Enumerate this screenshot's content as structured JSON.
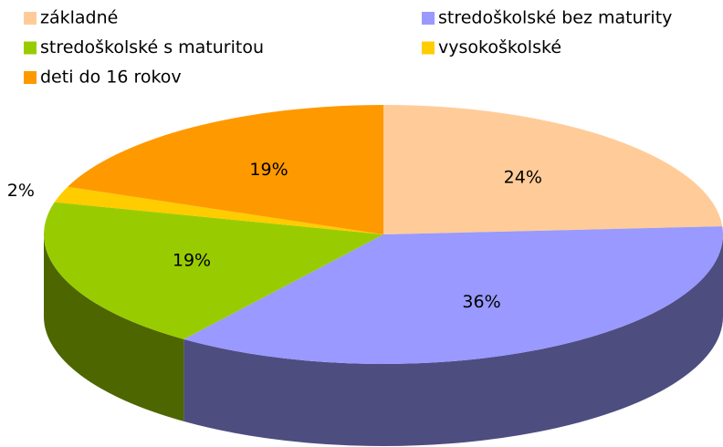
{
  "chart_data": {
    "type": "pie",
    "categories": [
      "základné",
      "stredoškolské bez maturity",
      "stredoškolské s maturitou",
      "vysokoškolské",
      "deti do 16 rokov"
    ],
    "values": [
      24,
      36,
      19,
      2,
      19
    ],
    "value_labels": [
      "24%",
      "36%",
      "19%",
      "2%",
      "19%"
    ],
    "colors": [
      "#FFCC99",
      "#9999FF",
      "#99CC00",
      "#FFCC00",
      "#FF9900"
    ],
    "legend": "top"
  }
}
